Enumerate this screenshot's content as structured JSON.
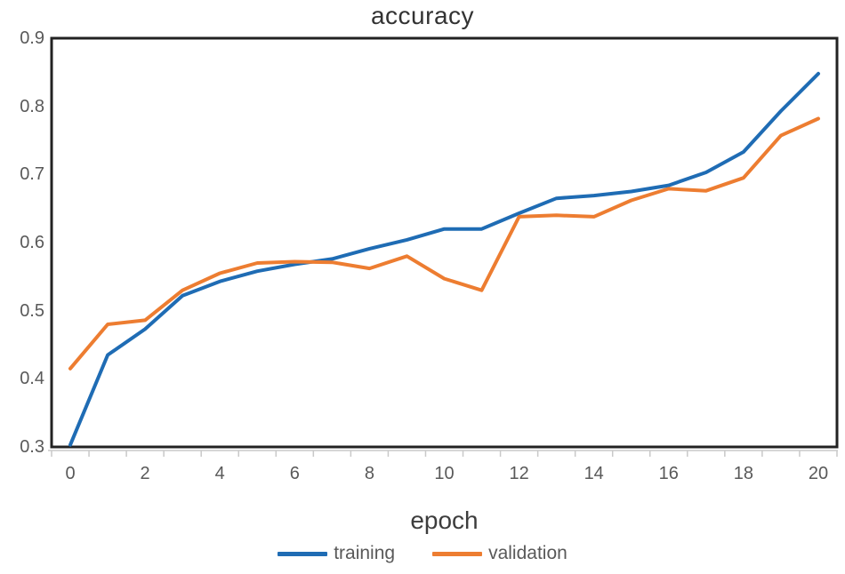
{
  "chart_data": {
    "type": "line",
    "title": "accuracy",
    "xlabel": "epoch",
    "ylabel": "",
    "x": [
      0,
      1,
      2,
      3,
      4,
      5,
      6,
      7,
      8,
      9,
      10,
      11,
      12,
      13,
      14,
      15,
      16,
      17,
      18,
      19,
      20
    ],
    "series": [
      {
        "name": "training",
        "color": "#1f6cb4",
        "values": [
          0.303,
          0.435,
          0.473,
          0.522,
          0.543,
          0.558,
          0.568,
          0.576,
          0.591,
          0.604,
          0.62,
          0.62,
          0.643,
          0.665,
          0.669,
          0.675,
          0.684,
          0.703,
          0.733,
          0.793,
          0.848
        ]
      },
      {
        "name": "validation",
        "color": "#ed7d31",
        "values": [
          0.415,
          0.48,
          0.486,
          0.53,
          0.555,
          0.57,
          0.572,
          0.571,
          0.562,
          0.58,
          0.547,
          0.53,
          0.638,
          0.64,
          0.638,
          0.662,
          0.679,
          0.676,
          0.695,
          0.757,
          0.782
        ]
      }
    ],
    "xlim": [
      -0.5,
      20.5
    ],
    "ylim": [
      0.3,
      0.9
    ],
    "xticks": [
      0,
      2,
      4,
      6,
      8,
      10,
      12,
      14,
      16,
      18,
      20
    ],
    "yticks": [
      0.9,
      0.8,
      0.7,
      0.6,
      0.5,
      0.4,
      0.3
    ],
    "minor_tick_interval_x": 1,
    "grid": false,
    "legend_position": "bottom",
    "legend": [
      "training",
      "validation"
    ],
    "colors": {
      "axis_line": "#c9c9c9",
      "plot_border": "#222222",
      "tick_label_text": "#595959",
      "title_text": "#333333",
      "axis_label_text": "#3d3d3d"
    }
  }
}
